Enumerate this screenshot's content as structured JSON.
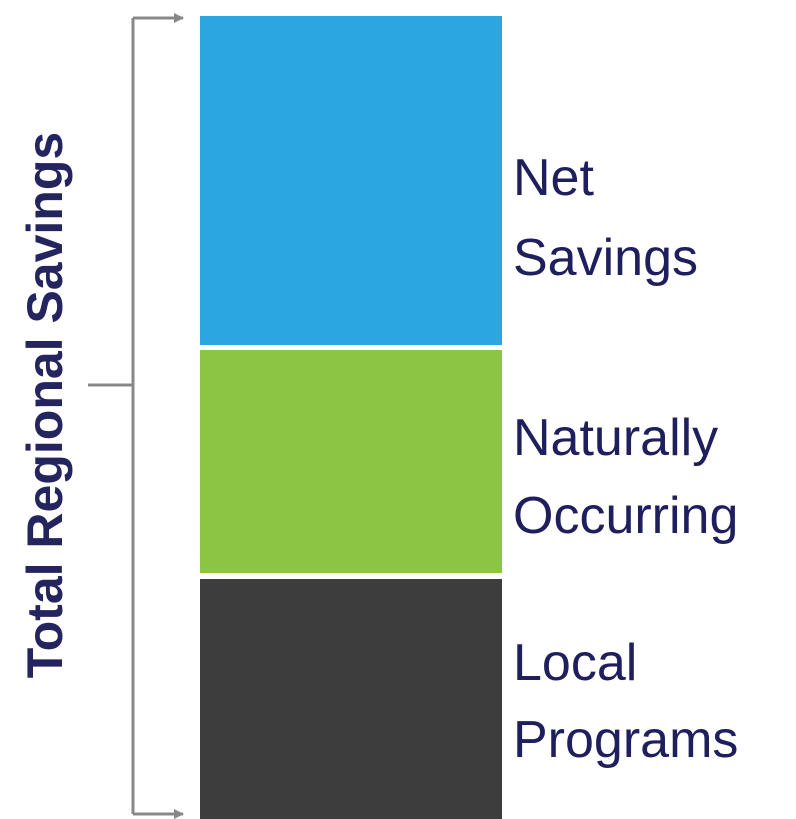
{
  "title": "Total Regional Savings",
  "segments": [
    {
      "label_lines": [
        "Net",
        "Savings"
      ],
      "color": "#2ca6e0"
    },
    {
      "label_lines": [
        "Naturally",
        "Occurring"
      ],
      "color": "#8cc443"
    },
    {
      "label_lines": [
        "Local",
        "Programs"
      ],
      "color": "#3d3d3d"
    }
  ]
}
